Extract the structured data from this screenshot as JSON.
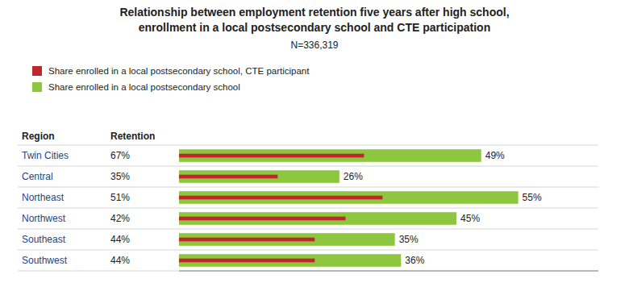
{
  "chart_data": {
    "type": "bar",
    "orientation": "horizontal",
    "title": [
      "Relationship between employment retention five years after high school,",
      "enrollment in a local postsecondary school and CTE participation"
    ],
    "subtitle": "N=336,319",
    "ylabel": "Region",
    "categories": [
      "Twin Cities",
      "Central",
      "Northeast",
      "Northwest",
      "Southeast",
      "Southwest"
    ],
    "retention": {
      "name": "Retention",
      "values": [
        67,
        35,
        51,
        42,
        44,
        44
      ],
      "value_labels": [
        "67%",
        "35%",
        "51%",
        "42%",
        "44%",
        "44%"
      ]
    },
    "series": [
      {
        "name": "Share enrolled in a local postsecondary school, CTE participant",
        "color": "#c0272d",
        "values": [
          30,
          16,
          33,
          27,
          22,
          22
        ]
      },
      {
        "name": "Share enrolled in a local postsecondary school",
        "color": "#8dc63f",
        "values": [
          49,
          26,
          55,
          45,
          35,
          36
        ],
        "value_labels": [
          "49%",
          "26%",
          "55%",
          "45%",
          "35%",
          "36%"
        ]
      }
    ],
    "xlim": [
      0,
      68
    ],
    "xticks": [],
    "tick_labels": "y",
    "grid": false,
    "legend": "upper left",
    "data_labels": true
  }
}
